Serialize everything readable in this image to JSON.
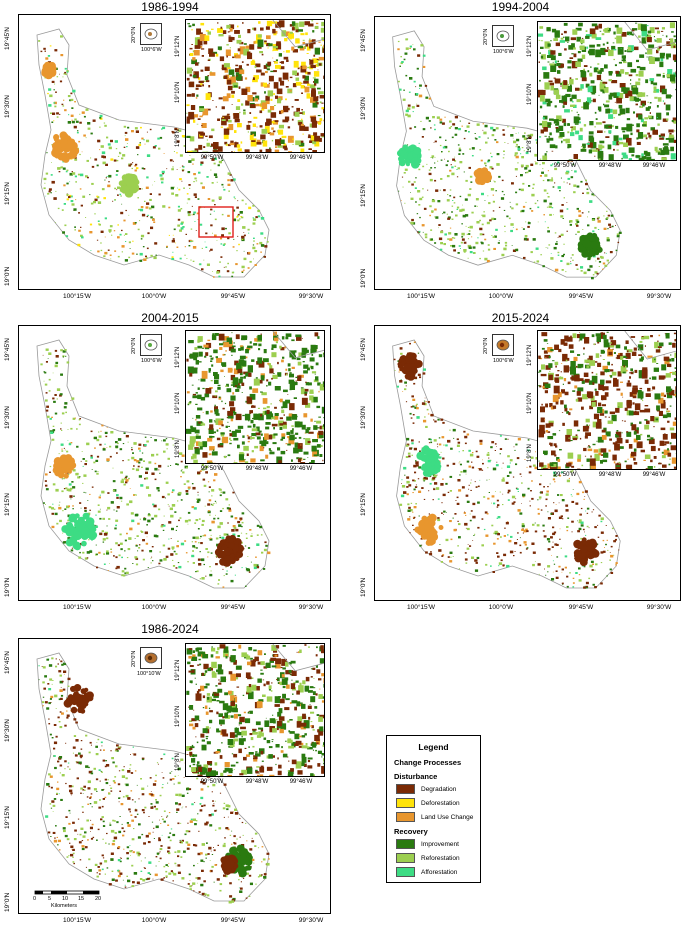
{
  "colors": {
    "degradation": "#7a2a05",
    "deforestation": "#ffe30a",
    "land_use_change": "#e8962e",
    "improvement": "#2a7a10",
    "reforestation": "#9ccf50",
    "afforestation": "#3ddc84",
    "boundary": "#9a9a9a"
  },
  "main_lon_ticks": [
    "100°15'W",
    "100°0'W",
    "99°45'W",
    "99°30'W"
  ],
  "main_lat_ticks": [
    "19°45'N",
    "19°30'N",
    "19°15'N",
    "19°0'N"
  ],
  "inset_lon_ticks": [
    "99°50'W",
    "99°48'W",
    "99°46'W"
  ],
  "inset_lat_ticks": [
    "19°12'N",
    "19°10'N",
    "19°8'N"
  ],
  "panels": [
    {
      "title": "1986-1994",
      "locator_lat": "20°0'N",
      "locator_lon": "100°6'W",
      "scheme": "p1"
    },
    {
      "title": "1994-2004",
      "locator_lat": "20°0'N",
      "locator_lon": "100°6'W",
      "scheme": "p2"
    },
    {
      "title": "2004-2015",
      "locator_lat": "20°0'N",
      "locator_lon": "100°6'W",
      "scheme": "p3"
    },
    {
      "title": "2015-2024",
      "locator_lat": "20°0'N",
      "locator_lon": "100°6'W",
      "scheme": "p4"
    },
    {
      "title": "1986-2024",
      "locator_lat": "20°0'N",
      "locator_lon": "100°10'W",
      "scheme": "p5"
    }
  ],
  "scalebar": {
    "ticks": [
      "0",
      "5",
      "10",
      "15",
      "20"
    ],
    "unit": "Kilometers"
  },
  "legend": {
    "title": "Legend",
    "subtitle": "Change Processes",
    "groups": [
      {
        "name": "Disturbance",
        "items": [
          {
            "label": "Degradation",
            "color": "#7a2a05"
          },
          {
            "label": "Deforestation",
            "color": "#ffe30a"
          },
          {
            "label": "Land Use Change",
            "color": "#e8962e"
          }
        ]
      },
      {
        "name": "Recovery",
        "items": [
          {
            "label": "Improvement",
            "color": "#2a7a10"
          },
          {
            "label": "Reforestation",
            "color": "#9ccf50"
          },
          {
            "label": "Afforestation",
            "color": "#3ddc84"
          }
        ]
      }
    ]
  }
}
